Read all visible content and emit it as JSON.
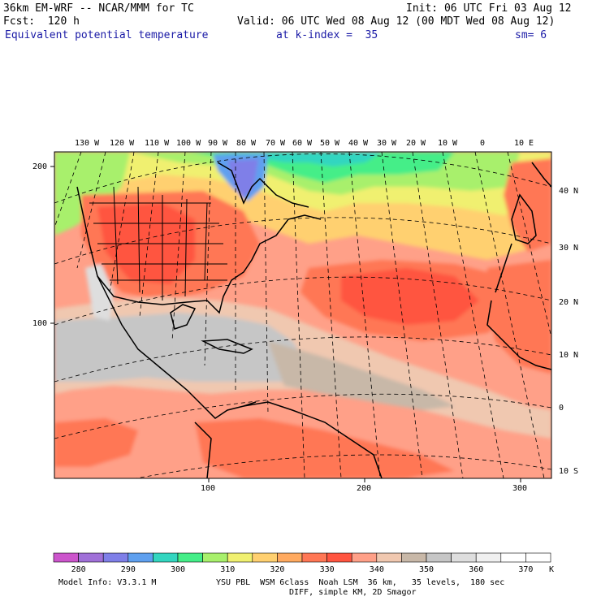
{
  "header": {
    "model_title": "36km EM-WRF -- NCAR/MMM for TC",
    "init": "Init: 06 UTC Fri 03 Aug 12",
    "forecast": "Fcst:  120 h",
    "valid": "Valid: 06 UTC Wed 08 Aug 12 (00 MDT Wed 08 Aug 12)",
    "field": "Equivalent potential temperature",
    "level": "at k-index =  35",
    "smoothing": "sm= 6"
  },
  "map": {
    "lon_labels": [
      "130 W",
      "120 W",
      "110 W",
      "100 W",
      "90 W",
      "80 W",
      "70 W",
      "60 W",
      "50 W",
      "40 W",
      "30 W",
      "20 W",
      "10 W",
      "0",
      "10 E"
    ],
    "lat_labels_right": [
      "40 N",
      "30 N",
      "20 N",
      "10 N",
      "0",
      "10 S"
    ],
    "grid_y_labels": [
      "200",
      "100"
    ],
    "grid_x_labels": [
      "100",
      "200",
      "300"
    ]
  },
  "colorbar": {
    "tick_labels": [
      "280",
      "290",
      "300",
      "310",
      "320",
      "330",
      "340",
      "350",
      "360",
      "370"
    ],
    "unit": "K",
    "colors": [
      "#cc55cc",
      "#a070d8",
      "#7f7fe8",
      "#5fa0ef",
      "#33d6c0",
      "#44ee88",
      "#a8f06c",
      "#f0f070",
      "#ffd070",
      "#ffaa60",
      "#ff7755",
      "#ff5540",
      "#ffa088",
      "#f0c8b0",
      "#c8b8a8",
      "#c6c6c6",
      "#dedede",
      "#f0f0f0",
      "#ffffff",
      "#ffffff"
    ]
  },
  "footer": {
    "line1_left": "Model Info: V3.3.1 M",
    "line1_right": "YSU PBL  WSM 6class  Noah LSM  36 km,   35 levels,  180 sec",
    "line2": "DIFF, simple KM, 2D Smagor"
  }
}
